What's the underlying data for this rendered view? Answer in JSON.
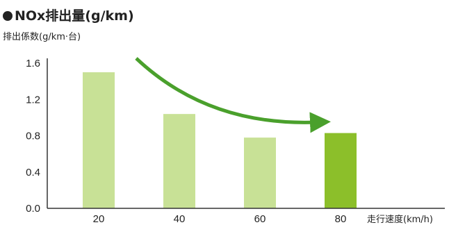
{
  "chart_data": {
    "type": "bar",
    "title": "NOx排出量(g/km)",
    "ylabel": "排出係数(g/km·台)",
    "xlabel": "走行速度(km/h)",
    "categories": [
      "20",
      "40",
      "60",
      "80"
    ],
    "values": [
      1.5,
      1.04,
      0.78,
      0.83
    ],
    "yticks": [
      "0.0",
      "0.4",
      "0.8",
      "1.2",
      "1.6"
    ],
    "ylim": [
      0,
      1.6
    ],
    "grid": false,
    "annotation": "arrow trending downward from 20 km/h toward 80 km/h",
    "colors": {
      "bar": "#c8e196",
      "highlight_bar": "#8cbf2a",
      "arrow": "#4aa02c",
      "axis": "#333333"
    }
  }
}
